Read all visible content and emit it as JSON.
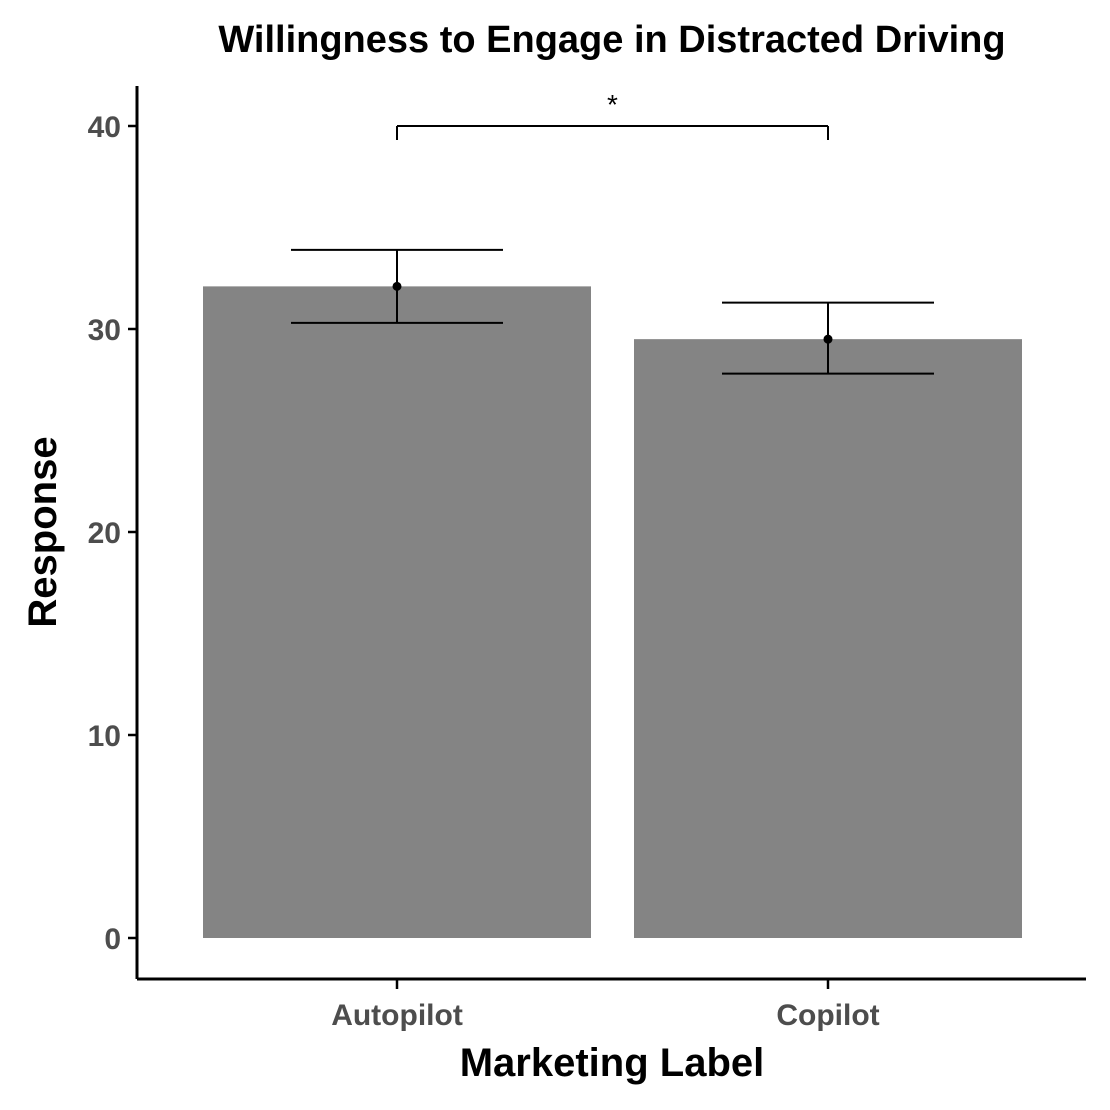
{
  "chart_data": {
    "type": "bar",
    "title": "Willingness to Engage in Distracted Driving",
    "xlabel": "Marketing Label",
    "ylabel": "Response",
    "categories": [
      "Autopilot",
      "Copilot"
    ],
    "values": [
      32.1,
      29.5
    ],
    "error_bars": [
      {
        "low": 30.3,
        "high": 33.9
      },
      {
        "low": 27.8,
        "high": 31.3
      }
    ],
    "ylim": [
      -2,
      42
    ],
    "yticks": [
      0,
      10,
      20,
      30,
      40
    ],
    "significance": {
      "between": [
        0,
        1
      ],
      "level": 40,
      "label": "*"
    },
    "colors": {
      "bar": "#848484",
      "axis": "#000000",
      "tick_text": "#4d4d4d"
    }
  }
}
